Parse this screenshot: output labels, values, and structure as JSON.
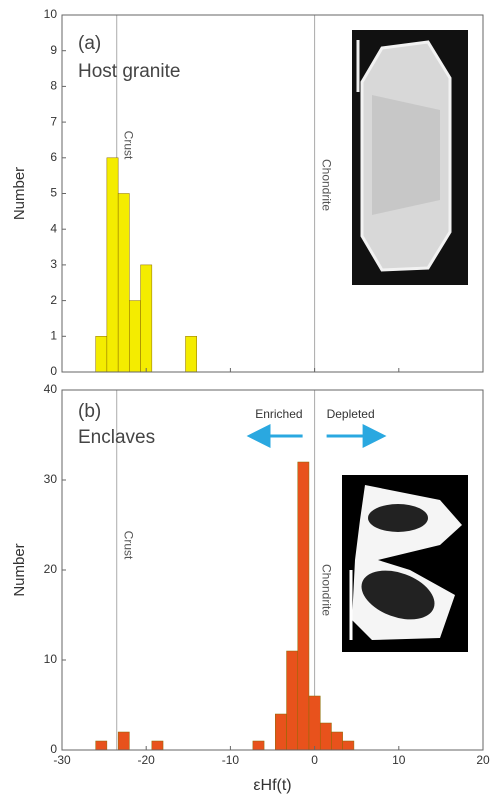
{
  "chart_data": [
    {
      "type": "histogram",
      "panel_label": "(a)",
      "title": "Host granite",
      "ylabel": "Number",
      "bins": [
        -26,
        -24.67,
        -23.33,
        -22,
        -20.67,
        -19.33,
        -18,
        -16.67,
        -15.33,
        -14
      ],
      "values": [
        1,
        6,
        5,
        2,
        3,
        0,
        0,
        0,
        1
      ],
      "color": "#f4ec00",
      "xlim": [
        -30,
        20
      ],
      "ylim": [
        0,
        10
      ],
      "yticks": [
        0,
        1,
        2,
        3,
        4,
        5,
        6,
        7,
        8,
        9,
        10
      ],
      "reference_lines": [
        {
          "x": -23.5,
          "label": "Crust"
        },
        {
          "x": 0,
          "label": "Chondrite"
        }
      ]
    },
    {
      "type": "histogram",
      "panel_label": "(b)",
      "title": "Enclaves",
      "ylabel": "Number",
      "xlabel": "εHf(t)",
      "bins": [
        -26,
        -24.67,
        -23.33,
        -22,
        -20.67,
        -19.33,
        -18,
        -16.67,
        -15.33,
        -14,
        -12.67,
        -11.33,
        -10,
        -8.67,
        -7.33,
        -6,
        -4.67,
        -3.33,
        -2,
        -0.67,
        0.67,
        2,
        3.33,
        4.67
      ],
      "values": [
        1,
        0,
        2,
        0,
        0,
        1,
        0,
        0,
        0,
        0,
        0,
        0,
        0,
        0,
        1,
        0,
        4,
        11,
        32,
        6,
        3,
        2,
        1
      ],
      "color": "#e8521c",
      "xlim": [
        -30,
        20
      ],
      "xticks": [
        -30,
        -20,
        -10,
        0,
        10,
        20
      ],
      "ylim": [
        0,
        40
      ],
      "yticks": [
        0,
        10,
        20,
        30,
        40
      ],
      "reference_lines": [
        {
          "x": -23.5,
          "label": "Crust"
        },
        {
          "x": 0,
          "label": "Chondrite"
        }
      ],
      "annotations": [
        "Enriched",
        "Depleted"
      ]
    }
  ]
}
